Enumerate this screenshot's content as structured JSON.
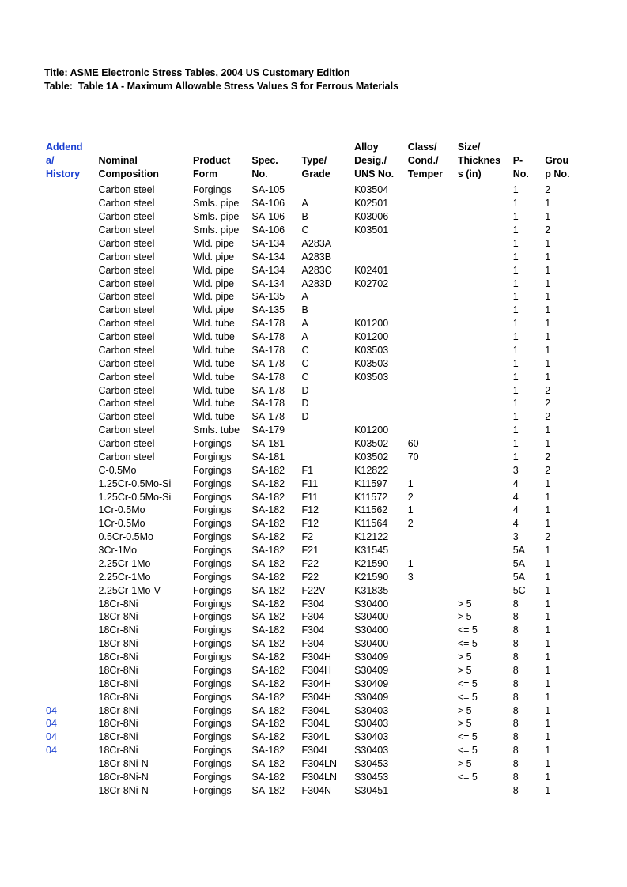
{
  "title_line1": "Title: ASME Electronic Stress Tables, 2004 US Customary Edition",
  "title_line2": "Table:  Table 1A - Maximum Allowable Stress Values S for Ferrous Materials",
  "columns": [
    {
      "key": "history",
      "lines": [
        "Addend",
        "a/",
        "History"
      ],
      "class": "col-history"
    },
    {
      "key": "nominal",
      "lines": [
        "",
        "Nominal",
        "Composition"
      ],
      "class": "col-nominal"
    },
    {
      "key": "product",
      "lines": [
        "",
        "Product",
        "Form"
      ],
      "class": "col-product"
    },
    {
      "key": "spec",
      "lines": [
        "",
        "Spec.",
        "No."
      ],
      "class": "col-spec"
    },
    {
      "key": "type",
      "lines": [
        "",
        "Type/",
        "Grade"
      ],
      "class": "col-type"
    },
    {
      "key": "alloy",
      "lines": [
        "Alloy",
        "Desig./",
        "UNS No."
      ],
      "class": "col-alloy"
    },
    {
      "key": "class",
      "lines": [
        "Class/",
        "Cond./",
        "Temper"
      ],
      "class": "col-class"
    },
    {
      "key": "size",
      "lines": [
        "Size/",
        "Thicknes",
        "s (in)"
      ],
      "class": "col-size"
    },
    {
      "key": "pno",
      "lines": [
        "",
        "P-",
        "No."
      ],
      "class": "col-pno"
    },
    {
      "key": "group",
      "lines": [
        "",
        "Grou",
        "p No."
      ],
      "class": "col-group"
    }
  ],
  "rows": [
    {
      "history": "",
      "nominal": "Carbon steel",
      "product": "Forgings",
      "spec": "SA-105",
      "type": "",
      "alloy": "K03504",
      "class": "",
      "size": "",
      "pno": "1",
      "group": "2"
    },
    {
      "history": "",
      "nominal": "Carbon steel",
      "product": "Smls. pipe",
      "spec": "SA-106",
      "type": "A",
      "alloy": "K02501",
      "class": "",
      "size": "",
      "pno": "1",
      "group": "1"
    },
    {
      "history": "",
      "nominal": "Carbon steel",
      "product": "Smls. pipe",
      "spec": "SA-106",
      "type": "B",
      "alloy": "K03006",
      "class": "",
      "size": "",
      "pno": "1",
      "group": "1"
    },
    {
      "history": "",
      "nominal": "Carbon steel",
      "product": "Smls. pipe",
      "spec": "SA-106",
      "type": "C",
      "alloy": "K03501",
      "class": "",
      "size": "",
      "pno": "1",
      "group": "2"
    },
    {
      "history": "",
      "nominal": "Carbon steel",
      "product": "Wld. pipe",
      "spec": "SA-134",
      "type": "A283A",
      "alloy": "",
      "class": "",
      "size": "",
      "pno": "1",
      "group": "1"
    },
    {
      "history": "",
      "nominal": "Carbon steel",
      "product": "Wld. pipe",
      "spec": "SA-134",
      "type": "A283B",
      "alloy": "",
      "class": "",
      "size": "",
      "pno": "1",
      "group": "1"
    },
    {
      "history": "",
      "nominal": "Carbon steel",
      "product": "Wld. pipe",
      "spec": "SA-134",
      "type": "A283C",
      "alloy": "K02401",
      "class": "",
      "size": "",
      "pno": "1",
      "group": "1"
    },
    {
      "history": "",
      "nominal": "Carbon steel",
      "product": "Wld. pipe",
      "spec": "SA-134",
      "type": "A283D",
      "alloy": "K02702",
      "class": "",
      "size": "",
      "pno": "1",
      "group": "1"
    },
    {
      "history": "",
      "nominal": "Carbon steel",
      "product": "Wld. pipe",
      "spec": "SA-135",
      "type": "A",
      "alloy": "",
      "class": "",
      "size": "",
      "pno": "1",
      "group": "1"
    },
    {
      "history": "",
      "nominal": "Carbon steel",
      "product": "Wld. pipe",
      "spec": "SA-135",
      "type": "B",
      "alloy": "",
      "class": "",
      "size": "",
      "pno": "1",
      "group": "1"
    },
    {
      "history": "",
      "nominal": "Carbon steel",
      "product": "Wld. tube",
      "spec": "SA-178",
      "type": "A",
      "alloy": "K01200",
      "class": "",
      "size": "",
      "pno": "1",
      "group": "1"
    },
    {
      "history": "",
      "nominal": "Carbon steel",
      "product": "Wld. tube",
      "spec": "SA-178",
      "type": "A",
      "alloy": "K01200",
      "class": "",
      "size": "",
      "pno": "1",
      "group": "1"
    },
    {
      "history": "",
      "nominal": "Carbon steel",
      "product": "Wld. tube",
      "spec": "SA-178",
      "type": "C",
      "alloy": "K03503",
      "class": "",
      "size": "",
      "pno": "1",
      "group": "1"
    },
    {
      "history": "",
      "nominal": "Carbon steel",
      "product": "Wld. tube",
      "spec": "SA-178",
      "type": "C",
      "alloy": "K03503",
      "class": "",
      "size": "",
      "pno": "1",
      "group": "1"
    },
    {
      "history": "",
      "nominal": "Carbon steel",
      "product": "Wld. tube",
      "spec": "SA-178",
      "type": "C",
      "alloy": "K03503",
      "class": "",
      "size": "",
      "pno": "1",
      "group": "1"
    },
    {
      "history": "",
      "nominal": "Carbon steel",
      "product": "Wld. tube",
      "spec": "SA-178",
      "type": "D",
      "alloy": "",
      "class": "",
      "size": "",
      "pno": "1",
      "group": "2"
    },
    {
      "history": "",
      "nominal": "Carbon steel",
      "product": "Wld. tube",
      "spec": "SA-178",
      "type": "D",
      "alloy": "",
      "class": "",
      "size": "",
      "pno": "1",
      "group": "2"
    },
    {
      "history": "",
      "nominal": "Carbon steel",
      "product": "Wld. tube",
      "spec": "SA-178",
      "type": "D",
      "alloy": "",
      "class": "",
      "size": "",
      "pno": "1",
      "group": "2"
    },
    {
      "history": "",
      "nominal": "Carbon steel",
      "product": "Smls. tube",
      "spec": "SA-179",
      "type": "",
      "alloy": "K01200",
      "class": "",
      "size": "",
      "pno": "1",
      "group": "1"
    },
    {
      "history": "",
      "nominal": "Carbon steel",
      "product": "Forgings",
      "spec": "SA-181",
      "type": "",
      "alloy": "K03502",
      "class": "60",
      "size": "",
      "pno": "1",
      "group": "1"
    },
    {
      "history": "",
      "nominal": "Carbon steel",
      "product": "Forgings",
      "spec": "SA-181",
      "type": "",
      "alloy": "K03502",
      "class": "70",
      "size": "",
      "pno": "1",
      "group": "2"
    },
    {
      "history": "",
      "nominal": "C-0.5Mo",
      "product": "Forgings",
      "spec": "SA-182",
      "type": "F1",
      "alloy": "K12822",
      "class": "",
      "size": "",
      "pno": "3",
      "group": "2"
    },
    {
      "history": "",
      "nominal": "1.25Cr-0.5Mo-Si",
      "product": "Forgings",
      "spec": "SA-182",
      "type": "F11",
      "alloy": "K11597",
      "class": "1",
      "size": "",
      "pno": "4",
      "group": "1"
    },
    {
      "history": "",
      "nominal": "1.25Cr-0.5Mo-Si",
      "product": "Forgings",
      "spec": "SA-182",
      "type": "F11",
      "alloy": "K11572",
      "class": "2",
      "size": "",
      "pno": "4",
      "group": "1"
    },
    {
      "history": "",
      "nominal": "1Cr-0.5Mo",
      "product": "Forgings",
      "spec": "SA-182",
      "type": "F12",
      "alloy": "K11562",
      "class": "1",
      "size": "",
      "pno": "4",
      "group": "1"
    },
    {
      "history": "",
      "nominal": "1Cr-0.5Mo",
      "product": "Forgings",
      "spec": "SA-182",
      "type": "F12",
      "alloy": "K11564",
      "class": "2",
      "size": "",
      "pno": "4",
      "group": "1"
    },
    {
      "history": "",
      "nominal": "0.5Cr-0.5Mo",
      "product": "Forgings",
      "spec": "SA-182",
      "type": "F2",
      "alloy": "K12122",
      "class": "",
      "size": "",
      "pno": "3",
      "group": "2"
    },
    {
      "history": "",
      "nominal": "3Cr-1Mo",
      "product": "Forgings",
      "spec": "SA-182",
      "type": "F21",
      "alloy": "K31545",
      "class": "",
      "size": "",
      "pno": "5A",
      "group": "1"
    },
    {
      "history": "",
      "nominal": "2.25Cr-1Mo",
      "product": "Forgings",
      "spec": "SA-182",
      "type": "F22",
      "alloy": "K21590",
      "class": "1",
      "size": "",
      "pno": "5A",
      "group": "1"
    },
    {
      "history": "",
      "nominal": "2.25Cr-1Mo",
      "product": "Forgings",
      "spec": "SA-182",
      "type": "F22",
      "alloy": "K21590",
      "class": "3",
      "size": "",
      "pno": "5A",
      "group": "1"
    },
    {
      "history": "",
      "nominal": "2.25Cr-1Mo-V",
      "product": "Forgings",
      "spec": "SA-182",
      "type": "F22V",
      "alloy": "K31835",
      "class": "",
      "size": "",
      "pno": "5C",
      "group": "1"
    },
    {
      "history": "",
      "nominal": "18Cr-8Ni",
      "product": "Forgings",
      "spec": "SA-182",
      "type": "F304",
      "alloy": "S30400",
      "class": "",
      "size": "> 5",
      "pno": "8",
      "group": "1"
    },
    {
      "history": "",
      "nominal": "18Cr-8Ni",
      "product": "Forgings",
      "spec": "SA-182",
      "type": "F304",
      "alloy": "S30400",
      "class": "",
      "size": "> 5",
      "pno": "8",
      "group": "1"
    },
    {
      "history": "",
      "nominal": "18Cr-8Ni",
      "product": "Forgings",
      "spec": "SA-182",
      "type": "F304",
      "alloy": "S30400",
      "class": "",
      "size": "<= 5",
      "pno": "8",
      "group": "1"
    },
    {
      "history": "",
      "nominal": "18Cr-8Ni",
      "product": "Forgings",
      "spec": "SA-182",
      "type": "F304",
      "alloy": "S30400",
      "class": "",
      "size": "<= 5",
      "pno": "8",
      "group": "1"
    },
    {
      "history": "",
      "nominal": "18Cr-8Ni",
      "product": "Forgings",
      "spec": "SA-182",
      "type": "F304H",
      "alloy": "S30409",
      "class": "",
      "size": "> 5",
      "pno": "8",
      "group": "1"
    },
    {
      "history": "",
      "nominal": "18Cr-8Ni",
      "product": "Forgings",
      "spec": "SA-182",
      "type": "F304H",
      "alloy": "S30409",
      "class": "",
      "size": "> 5",
      "pno": "8",
      "group": "1"
    },
    {
      "history": "",
      "nominal": "18Cr-8Ni",
      "product": "Forgings",
      "spec": "SA-182",
      "type": "F304H",
      "alloy": "S30409",
      "class": "",
      "size": "<= 5",
      "pno": "8",
      "group": "1"
    },
    {
      "history": "",
      "nominal": "18Cr-8Ni",
      "product": "Forgings",
      "spec": "SA-182",
      "type": "F304H",
      "alloy": "S30409",
      "class": "",
      "size": "<= 5",
      "pno": "8",
      "group": "1"
    },
    {
      "history": "04",
      "nominal": "18Cr-8Ni",
      "product": "Forgings",
      "spec": "SA-182",
      "type": "F304L",
      "alloy": "S30403",
      "class": "",
      "size": "> 5",
      "pno": "8",
      "group": "1"
    },
    {
      "history": "04",
      "nominal": "18Cr-8Ni",
      "product": "Forgings",
      "spec": "SA-182",
      "type": "F304L",
      "alloy": "S30403",
      "class": "",
      "size": "> 5",
      "pno": "8",
      "group": "1"
    },
    {
      "history": "04",
      "nominal": "18Cr-8Ni",
      "product": "Forgings",
      "spec": "SA-182",
      "type": "F304L",
      "alloy": "S30403",
      "class": "",
      "size": "<= 5",
      "pno": "8",
      "group": "1"
    },
    {
      "history": "04",
      "nominal": "18Cr-8Ni",
      "product": "Forgings",
      "spec": "SA-182",
      "type": "F304L",
      "alloy": "S30403",
      "class": "",
      "size": "<= 5",
      "pno": "8",
      "group": "1"
    },
    {
      "history": "",
      "nominal": "18Cr-8Ni-N",
      "product": "Forgings",
      "spec": "SA-182",
      "type": "F304LN",
      "alloy": "S30453",
      "class": "",
      "size": "> 5",
      "pno": "8",
      "group": "1"
    },
    {
      "history": "",
      "nominal": "18Cr-8Ni-N",
      "product": "Forgings",
      "spec": "SA-182",
      "type": "F304LN",
      "alloy": "S30453",
      "class": "",
      "size": "<= 5",
      "pno": "8",
      "group": "1"
    },
    {
      "history": "",
      "nominal": "18Cr-8Ni-N",
      "product": "Forgings",
      "spec": "SA-182",
      "type": "F304N",
      "alloy": "S30451",
      "class": "",
      "size": "",
      "pno": "8",
      "group": "1"
    }
  ]
}
